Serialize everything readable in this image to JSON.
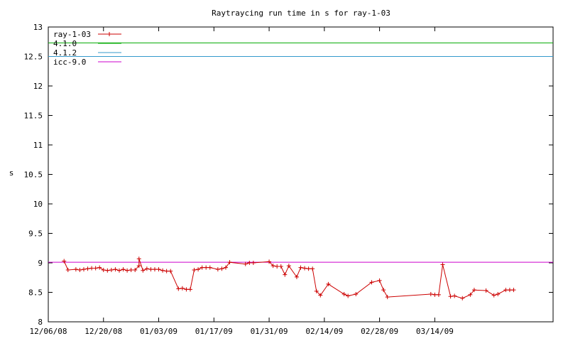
{
  "chart_data": {
    "type": "line",
    "title": "Raytraycing run time in s for ray-1-03",
    "xlabel": "",
    "ylabel": "s",
    "ylim": [
      8,
      13
    ],
    "xlim": [
      "2008-12-06",
      "2009-04-13"
    ],
    "yticks": [
      8,
      8.5,
      9,
      9.5,
      10,
      10.5,
      11,
      11.5,
      12,
      12.5,
      13
    ],
    "ytick_labels": [
      "8",
      "8.5",
      "9",
      "9.5",
      "10",
      "10.5",
      "11",
      "11.5",
      "12",
      "12.5",
      "13"
    ],
    "xticks": [
      "2008-12-06",
      "2008-12-20",
      "2009-01-03",
      "2009-01-17",
      "2009-01-31",
      "2009-02-14",
      "2009-02-28",
      "2009-03-14"
    ],
    "xtick_labels": [
      "12/06/08",
      "12/20/08",
      "01/03/09",
      "01/17/09",
      "01/31/09",
      "02/14/09",
      "02/28/09",
      "03/14/09"
    ],
    "grid": false,
    "legend_position": "top-left",
    "series": [
      {
        "name": "ray-1-03",
        "color": "#cc0000",
        "marker": "plus",
        "points": [
          [
            "2008-12-10",
            9.03
          ],
          [
            "2008-12-11",
            8.88
          ],
          [
            "2008-12-13",
            8.89
          ],
          [
            "2008-12-14",
            8.88
          ],
          [
            "2008-12-15",
            8.89
          ],
          [
            "2008-12-16",
            8.9
          ],
          [
            "2008-12-17",
            8.91
          ],
          [
            "2008-12-18",
            8.91
          ],
          [
            "2008-12-19",
            8.92
          ],
          [
            "2008-12-20",
            8.88
          ],
          [
            "2008-12-21",
            8.87
          ],
          [
            "2008-12-22",
            8.88
          ],
          [
            "2008-12-23",
            8.89
          ],
          [
            "2008-12-24",
            8.87
          ],
          [
            "2008-12-25",
            8.89
          ],
          [
            "2008-12-26",
            8.87
          ],
          [
            "2008-12-27",
            8.88
          ],
          [
            "2008-12-28",
            8.88
          ],
          [
            "2008-12-29",
            8.95
          ],
          [
            "2008-12-29",
            9.07
          ],
          [
            "2008-12-30",
            8.87
          ],
          [
            "2008-12-31",
            8.9
          ],
          [
            "2009-01-01",
            8.89
          ],
          [
            "2009-01-02",
            8.89
          ],
          [
            "2009-01-03",
            8.89
          ],
          [
            "2009-01-04",
            8.87
          ],
          [
            "2009-01-05",
            8.86
          ],
          [
            "2009-01-06",
            8.86
          ],
          [
            "2009-01-08",
            8.56
          ],
          [
            "2009-01-09",
            8.57
          ],
          [
            "2009-01-10",
            8.55
          ],
          [
            "2009-01-11",
            8.55
          ],
          [
            "2009-01-12",
            8.88
          ],
          [
            "2009-01-13",
            8.89
          ],
          [
            "2009-01-14",
            8.92
          ],
          [
            "2009-01-15",
            8.92
          ],
          [
            "2009-01-16",
            8.92
          ],
          [
            "2009-01-18",
            8.89
          ],
          [
            "2009-01-19",
            8.9
          ],
          [
            "2009-01-20",
            8.92
          ],
          [
            "2009-01-21",
            9.01
          ],
          [
            "2009-01-25",
            8.98
          ],
          [
            "2009-01-26",
            9.0
          ],
          [
            "2009-01-27",
            9.0
          ],
          [
            "2009-01-31",
            9.02
          ],
          [
            "2009-02-01",
            8.95
          ],
          [
            "2009-02-02",
            8.94
          ],
          [
            "2009-02-03",
            8.94
          ],
          [
            "2009-02-04",
            8.8
          ],
          [
            "2009-02-05",
            8.95
          ],
          [
            "2009-02-07",
            8.76
          ],
          [
            "2009-02-08",
            8.92
          ],
          [
            "2009-02-09",
            8.91
          ],
          [
            "2009-02-10",
            8.9
          ],
          [
            "2009-02-11",
            8.9
          ],
          [
            "2009-02-12",
            8.52
          ],
          [
            "2009-02-13",
            8.45
          ],
          [
            "2009-02-15",
            8.64
          ],
          [
            "2009-02-19",
            8.47
          ],
          [
            "2009-02-20",
            8.44
          ],
          [
            "2009-02-22",
            8.47
          ],
          [
            "2009-02-26",
            8.67
          ],
          [
            "2009-02-28",
            8.7
          ],
          [
            "2009-03-01",
            8.54
          ],
          [
            "2009-03-02",
            8.42
          ],
          [
            "2009-03-13",
            8.47
          ],
          [
            "2009-03-14",
            8.46
          ],
          [
            "2009-03-15",
            8.46
          ],
          [
            "2009-03-16",
            8.97
          ],
          [
            "2009-03-18",
            8.43
          ],
          [
            "2009-03-19",
            8.44
          ],
          [
            "2009-03-21",
            8.4
          ],
          [
            "2009-03-23",
            8.46
          ],
          [
            "2009-03-24",
            8.54
          ],
          [
            "2009-03-27",
            8.53
          ],
          [
            "2009-03-29",
            8.45
          ],
          [
            "2009-03-30",
            8.47
          ],
          [
            "2009-04-01",
            8.54
          ],
          [
            "2009-04-02",
            8.54
          ],
          [
            "2009-04-03",
            8.54
          ]
        ]
      },
      {
        "name": "4.1.0",
        "color": "#00aa00",
        "constant": 12.73
      },
      {
        "name": "4.1.2",
        "color": "#3399cc",
        "constant": 12.5
      },
      {
        "name": "icc-9.0",
        "color": "#cc00cc",
        "constant": 9.01
      }
    ]
  }
}
